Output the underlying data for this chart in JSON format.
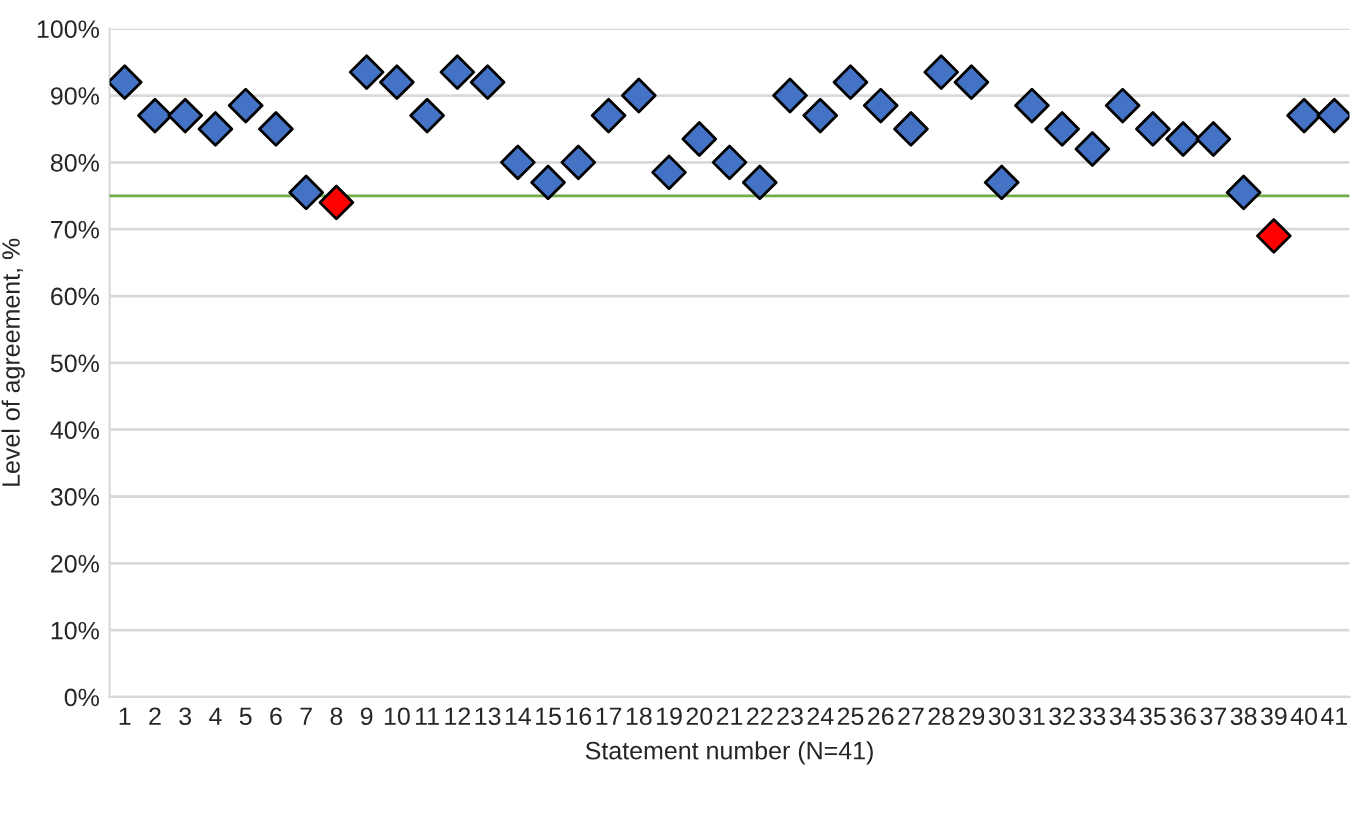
{
  "chart_data": {
    "type": "scatter",
    "xlabel": "Statement number (N=41)",
    "ylabel": "Level of agreement, %",
    "categories": [
      "1",
      "2",
      "3",
      "4",
      "5",
      "6",
      "7",
      "8",
      "9",
      "10",
      "11",
      "12",
      "13",
      "14",
      "15",
      "16",
      "17",
      "18",
      "19",
      "20",
      "21",
      "22",
      "23",
      "24",
      "25",
      "26",
      "27",
      "28",
      "29",
      "30",
      "31",
      "32",
      "33",
      "34",
      "35",
      "36",
      "37",
      "38",
      "39",
      "40",
      "41"
    ],
    "values": [
      92,
      87,
      87,
      85,
      88.5,
      85,
      75.5,
      74,
      93.5,
      92,
      87,
      93.5,
      92,
      80,
      77,
      80,
      87,
      90,
      78.5,
      83.5,
      80,
      77,
      90,
      87,
      92,
      88.5,
      85,
      93.5,
      92,
      77,
      88.5,
      85,
      82,
      88.5,
      85,
      83.5,
      83.5,
      75.5,
      69,
      87,
      87
    ],
    "colors": [
      "#4472c4",
      "#4472c4",
      "#4472c4",
      "#4472c4",
      "#4472c4",
      "#4472c4",
      "#4472c4",
      "#ff0000",
      "#4472c4",
      "#4472c4",
      "#4472c4",
      "#4472c4",
      "#4472c4",
      "#4472c4",
      "#4472c4",
      "#4472c4",
      "#4472c4",
      "#4472c4",
      "#4472c4",
      "#4472c4",
      "#4472c4",
      "#4472c4",
      "#4472c4",
      "#4472c4",
      "#4472c4",
      "#4472c4",
      "#4472c4",
      "#4472c4",
      "#4472c4",
      "#4472c4",
      "#4472c4",
      "#4472c4",
      "#4472c4",
      "#4472c4",
      "#4472c4",
      "#4472c4",
      "#4472c4",
      "#4472c4",
      "#ff0000",
      "#4472c4",
      "#4472c4"
    ],
    "ylim": [
      0,
      100
    ],
    "yticks": [
      {
        "value": 0,
        "label": "0%"
      },
      {
        "value": 10,
        "label": "10%"
      },
      {
        "value": 20,
        "label": "20%"
      },
      {
        "value": 30,
        "label": "30%"
      },
      {
        "value": 40,
        "label": "40%"
      },
      {
        "value": 50,
        "label": "50%"
      },
      {
        "value": 60,
        "label": "60%"
      },
      {
        "value": 70,
        "label": "70%"
      },
      {
        "value": 80,
        "label": "80%"
      },
      {
        "value": 90,
        "label": "90%"
      },
      {
        "value": 100,
        "label": "100%"
      }
    ],
    "ref_lines": [
      {
        "axis": "y",
        "value": 75,
        "color": "#70ad47"
      }
    ],
    "grid": "y",
    "marker": "diamond"
  }
}
